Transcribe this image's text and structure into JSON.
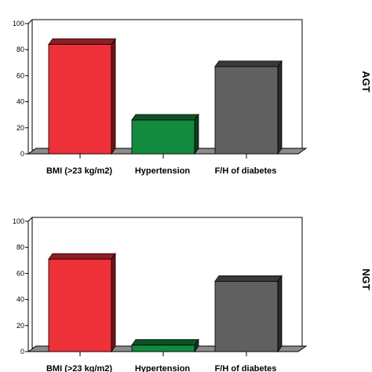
{
  "chart_data": [
    {
      "type": "bar",
      "side_label": "AGT",
      "categories": [
        "BMI (>23 kg/m2)",
        "Hypertension",
        "F/H of diabetes"
      ],
      "values": [
        84,
        26,
        67
      ],
      "yticks": [
        "0",
        "20",
        "40",
        "60",
        "80",
        "100"
      ],
      "ylim": [
        0,
        100
      ],
      "colors": [
        "#ee3038",
        "#138a40",
        "#606060"
      ],
      "grid": false
    },
    {
      "type": "bar",
      "side_label": "NGT",
      "categories": [
        "BMI (>23 kg/m2)",
        "Hypertension",
        "F/H of diabetes"
      ],
      "values": [
        71,
        5,
        54
      ],
      "yticks": [
        "0",
        "20",
        "40",
        "60",
        "80",
        "100"
      ],
      "ylim": [
        0,
        100
      ],
      "colors": [
        "#ee3038",
        "#138a40",
        "#606060"
      ],
      "grid": false
    }
  ]
}
